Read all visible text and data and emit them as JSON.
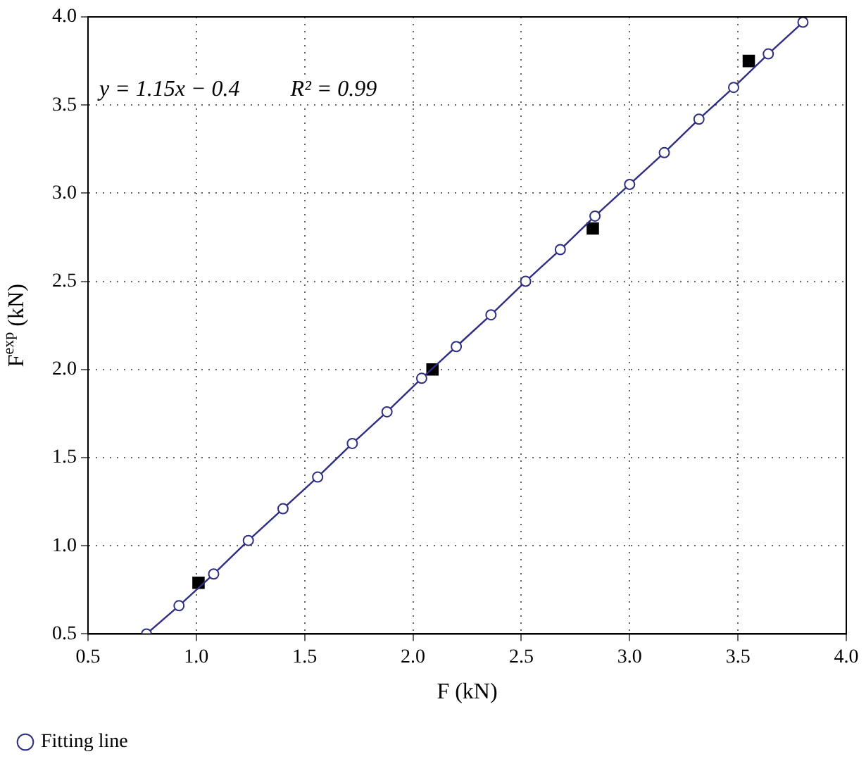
{
  "chart_data": {
    "type": "line",
    "xlabel": "F (kN)",
    "ylabel": "F$^{exp}$ (kN)",
    "xlim": [
      0.5,
      4.0
    ],
    "xticks": [
      {
        "value": 0.5,
        "label": "0.5"
      },
      {
        "value": 1.0,
        "label": "1.0"
      },
      {
        "value": 1.5,
        "label": "1.5"
      },
      {
        "value": 2.0,
        "label": "2.0"
      },
      {
        "value": 2.5,
        "label": "2.5"
      },
      {
        "value": 3.0,
        "label": "3.0"
      },
      {
        "value": 3.5,
        "label": "3.5"
      },
      {
        "value": 4.0,
        "label": "4.0"
      }
    ],
    "ylim": [
      0.5,
      4.0
    ],
    "yticks": [
      {
        "value": 0.5,
        "label": "0.5"
      },
      {
        "value": 1.0,
        "label": "1.0"
      },
      {
        "value": 1.5,
        "label": "1.5"
      },
      {
        "value": 2.0,
        "label": "2.0"
      },
      {
        "value": 2.5,
        "label": "2.5"
      },
      {
        "value": 3.0,
        "label": "3.0"
      },
      {
        "value": 3.5,
        "label": "3.5"
      },
      {
        "value": 4.0,
        "label": "4.0"
      }
    ],
    "grid": true,
    "legend": "bottom left",
    "annotations": [
      "y = 1.15x − 0.4",
      "R² = 0.99"
    ],
    "series": [
      {
        "name": "Fitting line",
        "type": "line",
        "color": "#2e2e82",
        "marker": "circle",
        "x": [
          0.77,
          0.92,
          1.08,
          1.24,
          1.4,
          1.56,
          1.72,
          1.88,
          2.04,
          2.2,
          2.36,
          2.52,
          2.68,
          2.84,
          3.0,
          3.16,
          3.32,
          3.48,
          3.64,
          3.8
        ],
        "values": [
          0.5,
          0.66,
          0.84,
          1.03,
          1.21,
          1.39,
          1.58,
          1.76,
          1.95,
          2.13,
          2.31,
          2.5,
          2.68,
          2.87,
          3.05,
          3.23,
          3.42,
          3.6,
          3.79,
          3.97
        ]
      },
      {
        "type": "scatter",
        "color": "#000000",
        "marker": "square",
        "x": [
          1.01,
          2.09,
          2.83,
          3.55
        ],
        "values": [
          0.79,
          2.0,
          2.8,
          3.75
        ]
      }
    ]
  }
}
